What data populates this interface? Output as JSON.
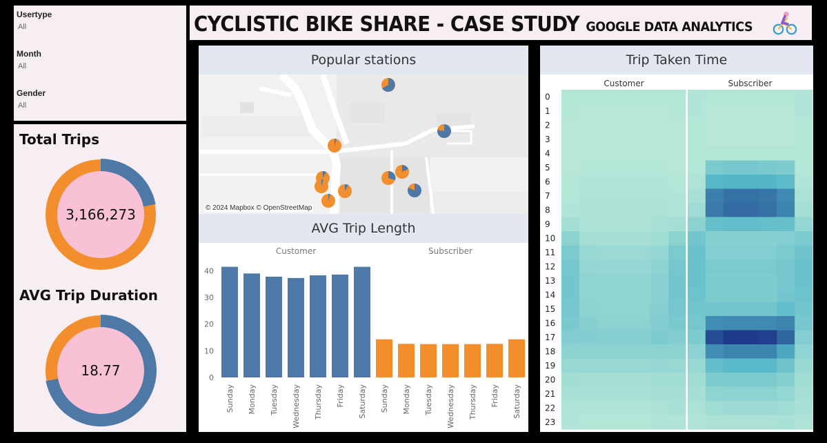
{
  "filters": [
    {
      "label": "Usertype",
      "value": "All"
    },
    {
      "label": "Month",
      "value": "All"
    },
    {
      "label": "Gender",
      "value": "All"
    }
  ],
  "header": {
    "title": "CYCLISTIC BIKE SHARE - CASE STUDY",
    "subtitle": "GOOGLE DATA ANALYTICS"
  },
  "colors": {
    "customer": "#f28e2b",
    "subscriber": "#4e79a7",
    "donut_center": "#f9c1d5",
    "panel_header": "#e3e7f0"
  },
  "kpis": {
    "total_trips": {
      "label": "Total Trips",
      "value": "3,166,273",
      "subscriber_share": 0.22
    },
    "avg_trip_duration": {
      "label": "AVG Trip Duration",
      "value": "18.77",
      "subscriber_share": 0.72
    }
  },
  "stations": {
    "title": "Popular stations",
    "credit": "© 2024 Mapbox © OpenStreetMap"
  },
  "trip_length": {
    "title": "AVG Trip Length"
  },
  "trip_time": {
    "title": "Trip Taken Time"
  },
  "chart_data": [
    {
      "type": "bar",
      "title": "AVG Trip Length",
      "groups": [
        "Customer",
        "Subscriber"
      ],
      "categories": [
        "Sunday",
        "Monday",
        "Tuesday",
        "Wednesday",
        "Thursday",
        "Friday",
        "Saturday"
      ],
      "series": [
        {
          "name": "Customer",
          "color": "#4e79a7",
          "values": [
            41.5,
            39,
            37.8,
            37.3,
            38.3,
            38.6,
            41.5
          ]
        },
        {
          "name": "Subscriber",
          "color": "#f28e2b",
          "values": [
            14.3,
            12.6,
            12.5,
            12.5,
            12.5,
            12.6,
            14.3
          ]
        }
      ],
      "yticks": [
        0,
        10,
        20,
        30,
        40
      ],
      "ylim": [
        0,
        44
      ]
    },
    {
      "type": "heatmap",
      "title": "Trip Taken Time",
      "columns": [
        "Customer",
        "Subscriber"
      ],
      "rows": [
        "0",
        "1",
        "2",
        "3",
        "4",
        "5",
        "6",
        "7",
        "8",
        "9",
        "10",
        "11",
        "12",
        "13",
        "14",
        "15",
        "16",
        "17",
        "18",
        "19",
        "20",
        "21",
        "22",
        "23"
      ],
      "subcolumns": 7,
      "values": {
        "Customer": [
          [
            0.02,
            0.02,
            0.02,
            0.02,
            0.02,
            0.02,
            0.02
          ],
          [
            0.02,
            0.01,
            0.01,
            0.01,
            0.01,
            0.01,
            0.02
          ],
          [
            0.01,
            0.01,
            0.01,
            0.01,
            0.01,
            0.01,
            0.01
          ],
          [
            0.01,
            0.01,
            0.01,
            0.01,
            0.01,
            0.01,
            0.01
          ],
          [
            0.01,
            0.01,
            0.01,
            0.01,
            0.01,
            0.01,
            0.01
          ],
          [
            0.01,
            0.02,
            0.02,
            0.02,
            0.02,
            0.02,
            0.01
          ],
          [
            0.02,
            0.03,
            0.03,
            0.03,
            0.03,
            0.03,
            0.02
          ],
          [
            0.02,
            0.05,
            0.05,
            0.05,
            0.05,
            0.05,
            0.03
          ],
          [
            0.03,
            0.06,
            0.06,
            0.06,
            0.06,
            0.06,
            0.04
          ],
          [
            0.1,
            0.06,
            0.06,
            0.06,
            0.06,
            0.07,
            0.1
          ],
          [
            0.22,
            0.1,
            0.09,
            0.09,
            0.09,
            0.11,
            0.22
          ],
          [
            0.3,
            0.15,
            0.14,
            0.14,
            0.14,
            0.17,
            0.3
          ],
          [
            0.33,
            0.18,
            0.17,
            0.17,
            0.17,
            0.21,
            0.33
          ],
          [
            0.34,
            0.2,
            0.19,
            0.19,
            0.19,
            0.23,
            0.34
          ],
          [
            0.34,
            0.2,
            0.19,
            0.19,
            0.19,
            0.23,
            0.34
          ],
          [
            0.33,
            0.21,
            0.2,
            0.2,
            0.2,
            0.25,
            0.33
          ],
          [
            0.31,
            0.24,
            0.22,
            0.22,
            0.22,
            0.27,
            0.31
          ],
          [
            0.27,
            0.27,
            0.25,
            0.25,
            0.25,
            0.28,
            0.27
          ],
          [
            0.22,
            0.22,
            0.21,
            0.21,
            0.21,
            0.22,
            0.22
          ],
          [
            0.16,
            0.16,
            0.16,
            0.16,
            0.16,
            0.17,
            0.16
          ],
          [
            0.11,
            0.1,
            0.1,
            0.1,
            0.1,
            0.12,
            0.11
          ],
          [
            0.08,
            0.07,
            0.07,
            0.07,
            0.07,
            0.09,
            0.09
          ],
          [
            0.05,
            0.04,
            0.04,
            0.04,
            0.04,
            0.06,
            0.07
          ],
          [
            0.03,
            0.02,
            0.02,
            0.02,
            0.02,
            0.04,
            0.04
          ]
        ],
        "Subscriber": [
          [
            0.03,
            0.02,
            0.02,
            0.02,
            0.02,
            0.02,
            0.03
          ],
          [
            0.03,
            0.01,
            0.01,
            0.01,
            0.01,
            0.01,
            0.03
          ],
          [
            0.02,
            0.01,
            0.01,
            0.01,
            0.01,
            0.01,
            0.02
          ],
          [
            0.02,
            0.01,
            0.01,
            0.01,
            0.01,
            0.01,
            0.02
          ],
          [
            0.02,
            0.02,
            0.02,
            0.02,
            0.02,
            0.02,
            0.02
          ],
          [
            0.02,
            0.3,
            0.32,
            0.32,
            0.31,
            0.28,
            0.02
          ],
          [
            0.05,
            0.48,
            0.5,
            0.5,
            0.49,
            0.44,
            0.04
          ],
          [
            0.08,
            0.72,
            0.78,
            0.78,
            0.76,
            0.68,
            0.06
          ],
          [
            0.12,
            0.74,
            0.8,
            0.8,
            0.78,
            0.7,
            0.09
          ],
          [
            0.22,
            0.4,
            0.42,
            0.42,
            0.41,
            0.4,
            0.18
          ],
          [
            0.34,
            0.24,
            0.24,
            0.24,
            0.24,
            0.26,
            0.3
          ],
          [
            0.38,
            0.26,
            0.26,
            0.26,
            0.26,
            0.3,
            0.36
          ],
          [
            0.38,
            0.3,
            0.3,
            0.3,
            0.3,
            0.33,
            0.38
          ],
          [
            0.38,
            0.28,
            0.28,
            0.28,
            0.28,
            0.32,
            0.38
          ],
          [
            0.37,
            0.28,
            0.28,
            0.28,
            0.28,
            0.34,
            0.37
          ],
          [
            0.35,
            0.34,
            0.34,
            0.34,
            0.34,
            0.42,
            0.35
          ],
          [
            0.33,
            0.66,
            0.68,
            0.68,
            0.68,
            0.7,
            0.32
          ],
          [
            0.28,
            0.92,
            1.0,
            1.0,
            0.98,
            0.82,
            0.26
          ],
          [
            0.22,
            0.66,
            0.7,
            0.7,
            0.7,
            0.56,
            0.2
          ],
          [
            0.16,
            0.42,
            0.46,
            0.46,
            0.46,
            0.36,
            0.15
          ],
          [
            0.12,
            0.28,
            0.3,
            0.3,
            0.3,
            0.24,
            0.11
          ],
          [
            0.09,
            0.2,
            0.21,
            0.21,
            0.21,
            0.18,
            0.09
          ],
          [
            0.06,
            0.12,
            0.13,
            0.13,
            0.13,
            0.12,
            0.07
          ],
          [
            0.04,
            0.06,
            0.06,
            0.06,
            0.06,
            0.07,
            0.05
          ]
        ]
      }
    }
  ]
}
